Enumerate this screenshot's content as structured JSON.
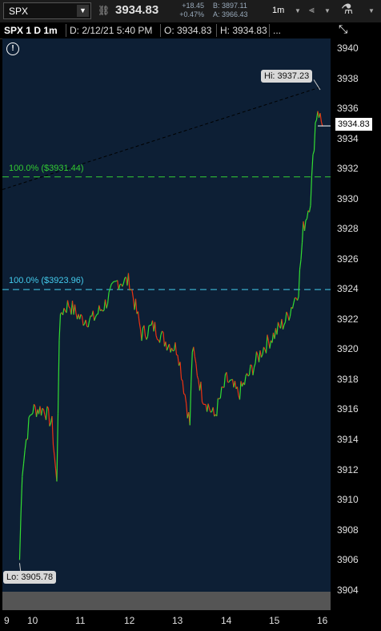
{
  "toolbar": {
    "symbol": "SPX",
    "last_price": "3934.83",
    "net_change": "+18.45",
    "pct_change": "+0.47%",
    "bid": "B: 3897.11",
    "ask": "A: 3966.43",
    "timeframe": "1m",
    "icons": [
      "symbol-dropdown-icon",
      "link-icon",
      "timeframe-dropdown-icon",
      "candle-style-icon",
      "studies-flask-icon"
    ]
  },
  "header": {
    "title": "SPX 1 D 1m",
    "date": "D: 2/12/21 5:40 PM",
    "open": "O: 3934.83",
    "high": "H: 3934.83",
    "more": "..."
  },
  "chart_data": {
    "type": "line",
    "series": [
      {
        "values_x_hours": [
          9.5,
          9.6,
          9.75,
          9.9,
          10.0,
          10.25,
          10.4,
          10.5,
          10.55,
          10.6,
          10.75,
          11.0,
          11.25,
          11.5,
          11.75,
          12.0,
          12.25,
          12.5,
          12.75,
          13.0,
          13.25,
          13.3,
          13.5,
          13.75,
          14.0,
          14.25,
          14.5,
          14.75,
          15.0,
          15.25,
          15.5,
          15.6,
          15.75,
          15.85,
          15.9,
          16.0
        ],
        "values": [
          3906,
          3912,
          3914,
          3915.5,
          3916,
          3916,
          3915,
          3911,
          3921,
          3922.5,
          3923,
          3922,
          3922,
          3923,
          3924.5,
          3924.5,
          3921,
          3921.5,
          3920.5,
          3920,
          3915,
          3920,
          3917,
          3915.5,
          3918,
          3917,
          3918.5,
          3920,
          3921,
          3922,
          3924,
          3928,
          3930,
          3935,
          3936,
          3934.8
        ]
      }
    ],
    "ylim": [
      3904,
      3940
    ],
    "y_ticks": [
      "3940",
      "3938",
      "3936",
      "3934",
      "3932",
      "3930",
      "3928",
      "3926",
      "3924",
      "3922",
      "3920",
      "3918",
      "3916",
      "3914",
      "3912",
      "3910",
      "3908",
      "3906",
      "3904"
    ],
    "x_ticks": [
      "9",
      "10",
      "11",
      "12",
      "13",
      "14",
      "15",
      "16"
    ],
    "annotations": {
      "high": "Hi: 3937.23",
      "low": "Lo: 3905.78",
      "current": "3934.83",
      "fib_upper": "100.0%  ($3931.44)",
      "fib_lower": "100.0%  ($3923.96)"
    },
    "colors": {
      "up": "#33dd33",
      "down": "#ee3311",
      "fib_upper": "#33cc33",
      "fib_lower": "#44ccee",
      "background": "#0d1f35"
    }
  }
}
